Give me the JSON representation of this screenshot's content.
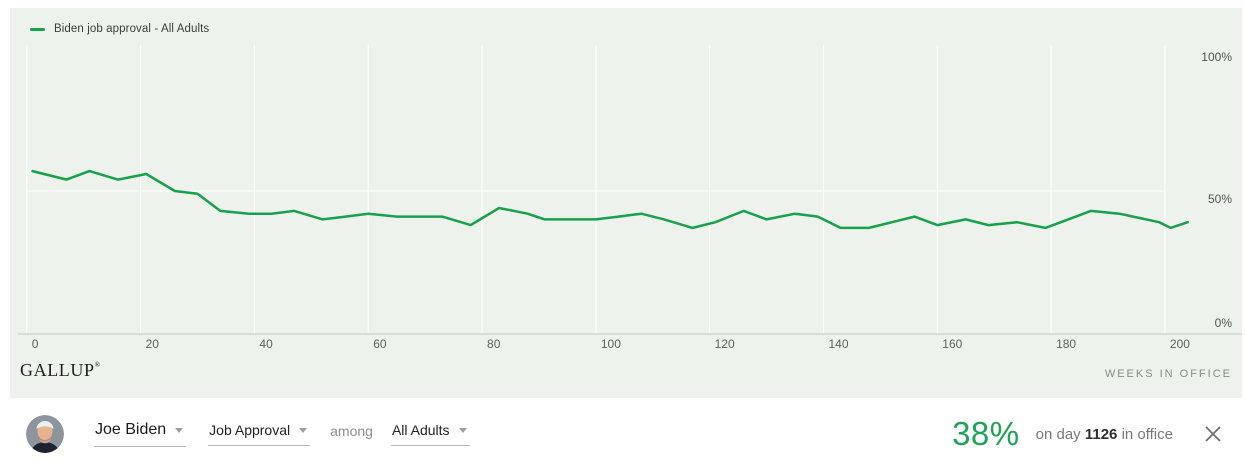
{
  "legend": {
    "label": "Biden job approval - All Adults"
  },
  "branding": {
    "logo": "GALLUP",
    "registered": "®"
  },
  "colors": {
    "accent_green": "#17A14D",
    "value_green": "#1FA355",
    "panel_bg": "#edf3ec",
    "grid_white": "#ffffff",
    "axis_gray": "#d9dcd7"
  },
  "chart_data": {
    "type": "line",
    "title": "Biden job approval - All Adults",
    "xlabel": "WEEKS IN OFFICE",
    "ylabel": "",
    "xlim": [
      0,
      213
    ],
    "ylim": [
      0,
      100
    ],
    "grid": true,
    "legend_position": "top-left",
    "line_color": "#17A14D",
    "x_ticks": [
      0,
      20,
      40,
      60,
      80,
      100,
      120,
      140,
      160,
      180,
      200
    ],
    "y_ticks": [
      {
        "value": 100,
        "label": "100%"
      },
      {
        "value": 50,
        "label": "50%"
      },
      {
        "value": 0,
        "label": "0%"
      }
    ],
    "series": [
      {
        "name": "Biden job approval - All Adults",
        "points": [
          [
            1,
            57
          ],
          [
            7,
            54
          ],
          [
            11,
            57
          ],
          [
            16,
            54
          ],
          [
            21,
            56
          ],
          [
            26,
            50
          ],
          [
            30,
            49
          ],
          [
            34,
            43
          ],
          [
            39,
            42
          ],
          [
            43,
            42
          ],
          [
            47,
            43
          ],
          [
            52,
            40
          ],
          [
            56,
            41
          ],
          [
            60,
            42
          ],
          [
            65,
            41
          ],
          [
            69,
            41
          ],
          [
            73,
            41
          ],
          [
            78,
            38
          ],
          [
            83,
            44
          ],
          [
            88,
            42
          ],
          [
            91,
            40
          ],
          [
            95,
            40
          ],
          [
            100,
            40
          ],
          [
            104,
            41
          ],
          [
            108,
            42
          ],
          [
            112,
            40
          ],
          [
            117,
            37
          ],
          [
            121,
            39
          ],
          [
            126,
            43
          ],
          [
            130,
            40
          ],
          [
            135,
            42
          ],
          [
            139,
            41
          ],
          [
            143,
            37
          ],
          [
            148,
            37
          ],
          [
            152,
            39
          ],
          [
            156,
            41
          ],
          [
            160,
            38
          ],
          [
            165,
            40
          ],
          [
            169,
            38
          ],
          [
            174,
            39
          ],
          [
            179,
            37
          ],
          [
            187,
            43
          ],
          [
            192,
            42
          ],
          [
            199,
            39
          ],
          [
            201,
            37
          ],
          [
            204,
            39
          ]
        ]
      }
    ]
  },
  "footer": {
    "person": "Joe Biden",
    "metric": "Job Approval",
    "among_label": "among",
    "group": "All Adults",
    "value": "38%",
    "day_prefix": "on day",
    "day_number": "1126",
    "day_suffix": "in office"
  }
}
